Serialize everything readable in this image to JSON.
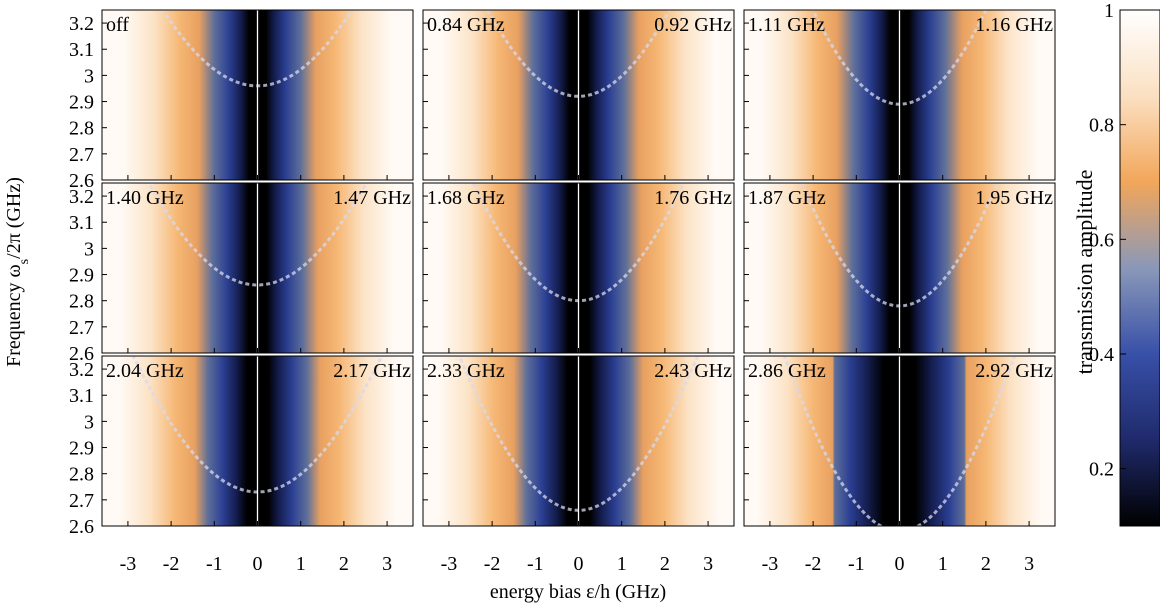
{
  "chart_data": {
    "type": "heatmap",
    "layout": "3x3 panel grid with shared axes and shared colorbar",
    "xlabel": "energy bias ε/h (GHz)",
    "ylabel_prefix": "Frequency ω",
    "ylabel_sub": "s",
    "ylabel_suffix": "/2π (GHz)",
    "xlim": [
      -3.6,
      3.6
    ],
    "ylim": [
      2.6,
      3.25
    ],
    "x_ticks": [
      -3,
      -2,
      -1,
      0,
      1,
      2,
      3
    ],
    "x_tick_labels": [
      "-3",
      "-2",
      "-1",
      "0",
      "1",
      "2",
      "3"
    ],
    "y_ticks": [
      2.6,
      2.7,
      2.8,
      2.9,
      3.0,
      3.1,
      3.2
    ],
    "y_tick_labels": [
      "2.6",
      "2.7",
      "2.8",
      "2.9",
      "3",
      "3.1",
      "3.2"
    ],
    "colorbar": {
      "label": "transmission amplitude",
      "range": [
        0.1,
        1.0
      ],
      "ticks": [
        0.2,
        0.4,
        0.6,
        0.8,
        1
      ],
      "tick_labels": [
        "0.2",
        "0.4",
        "0.6",
        "0.8",
        "1"
      ],
      "colormap": [
        "#000000",
        "#1f2a6b",
        "#3850a8",
        "#8a98b8",
        "#f2a65a",
        "#fbe0c2",
        "#ffffff"
      ]
    },
    "panels": [
      {
        "left_label": "off",
        "right_label": "",
        "min_splitting_freq": 2.96,
        "dark_halfwidth": 0.55,
        "warm_center": 1.8
      },
      {
        "left_label": "0.84 GHz",
        "right_label": "0.92 GHz",
        "min_splitting_freq": 2.92,
        "dark_halfwidth": 0.6,
        "warm_center": 1.85
      },
      {
        "left_label": "1.11 GHz",
        "right_label": "1.16 GHz",
        "min_splitting_freq": 2.89,
        "dark_halfwidth": 0.6,
        "warm_center": 1.9
      },
      {
        "left_label": "1.40 GHz",
        "right_label": "1.47 GHz",
        "min_splitting_freq": 2.86,
        "dark_halfwidth": 0.6,
        "warm_center": 1.85
      },
      {
        "left_label": "1.68 GHz",
        "right_label": "1.76 GHz",
        "min_splitting_freq": 2.8,
        "dark_halfwidth": 0.65,
        "warm_center": 1.9
      },
      {
        "left_label": "1.87 GHz",
        "right_label": "1.95 GHz",
        "min_splitting_freq": 2.78,
        "dark_halfwidth": 0.65,
        "warm_center": 1.9
      },
      {
        "left_label": "2.04 GHz",
        "right_label": "2.17 GHz",
        "min_splitting_freq": 2.73,
        "dark_halfwidth": 0.7,
        "warm_center": 1.9
      },
      {
        "left_label": "2.33 GHz",
        "right_label": "2.43 GHz",
        "min_splitting_freq": 2.66,
        "dark_halfwidth": 0.75,
        "warm_center": 1.95
      },
      {
        "left_label": "2.86 GHz",
        "right_label": "2.92 GHz",
        "min_splitting_freq": 2.58,
        "dark_halfwidth": 1.05,
        "warm_center": 2.0
      }
    ]
  }
}
